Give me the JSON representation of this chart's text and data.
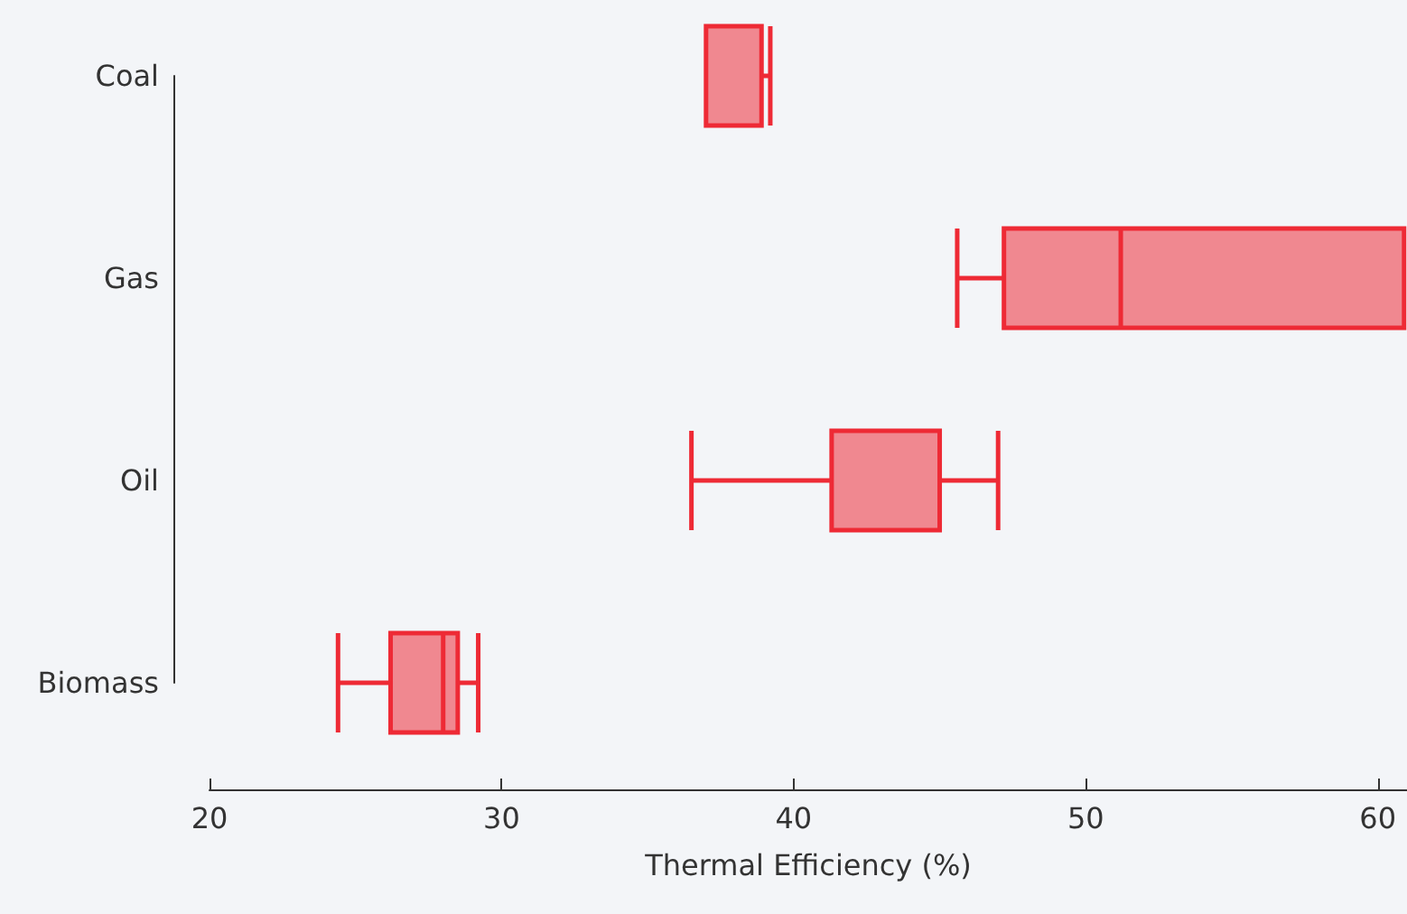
{
  "chart_data": {
    "type": "box",
    "orientation": "horizontal",
    "xlabel": "Thermal Efficiency (%)",
    "categories": [
      "Coal",
      "Gas",
      "Oil",
      "Biomass"
    ],
    "series": [
      {
        "color": "#ee2a35",
        "boxes": [
          {
            "low": 37.0,
            "q1": 37.0,
            "median": 38.9,
            "q3": 38.9,
            "high": 39.2
          },
          {
            "low": 45.6,
            "q1": 47.2,
            "median": 51.2,
            "q3": 60.9,
            "high": 60.9
          },
          {
            "low": 36.5,
            "q1": 41.3,
            "median": 45.0,
            "q3": 45.0,
            "high": 47.0
          },
          {
            "low": 24.4,
            "q1": 26.2,
            "median": 28.0,
            "q3": 28.5,
            "high": 29.2
          }
        ]
      }
    ],
    "xlim": [
      20,
      61
    ],
    "xticks": [
      20,
      30,
      40,
      50,
      60
    ],
    "grid": false
  }
}
